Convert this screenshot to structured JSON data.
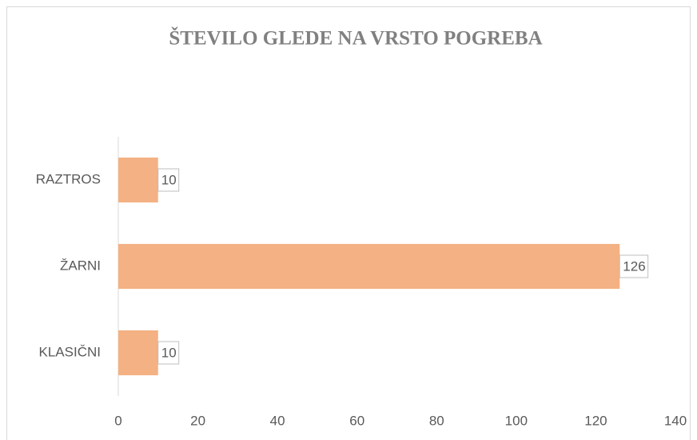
{
  "chart_data": {
    "type": "hbar",
    "title": "ŠTEVILO GLEDE NA VRSTO POGREBA",
    "categories": [
      "RAZTROS",
      "ŽARNI",
      "KLASIČNI"
    ],
    "values": [
      10,
      126,
      10
    ],
    "color": "#f4b183",
    "xlim": [
      0,
      140
    ],
    "xticks": [
      0,
      20,
      40,
      60,
      80,
      100,
      120,
      140
    ],
    "grid": false
  }
}
